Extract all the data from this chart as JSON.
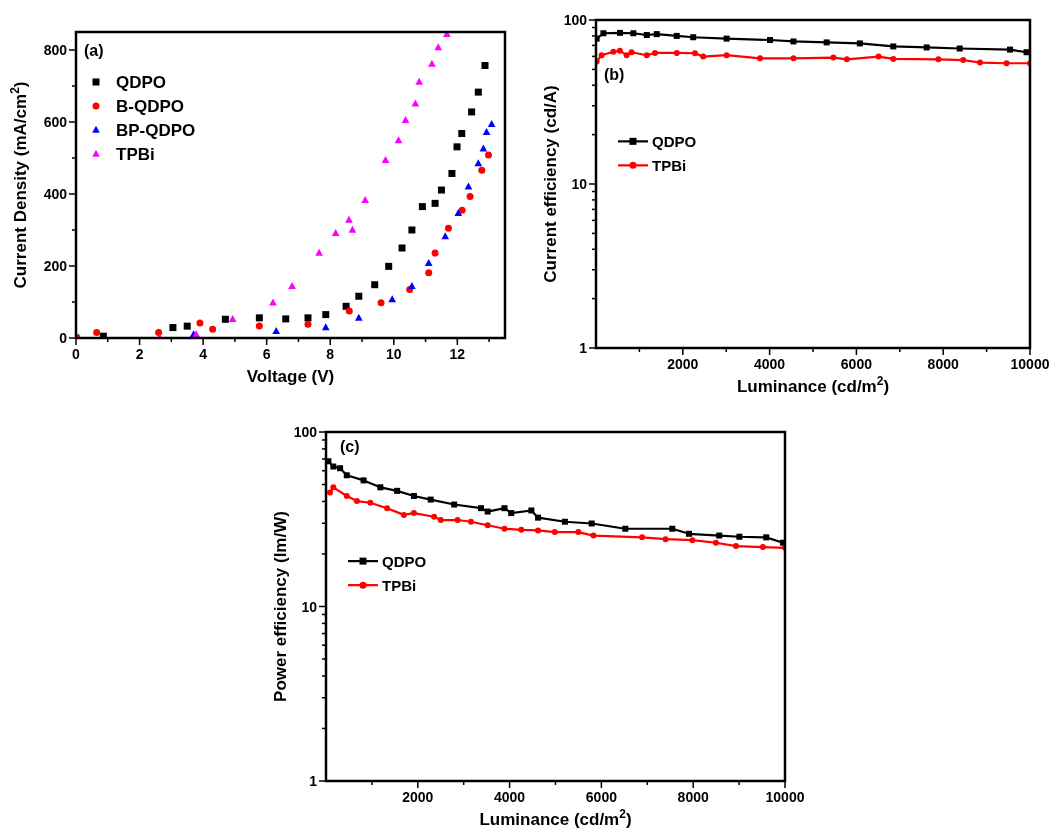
{
  "chart_data": [
    {
      "type": "scatter",
      "annotations": [
        "(a)"
      ],
      "xlabel": "Voltage (V)",
      "ylabel": "Current Density (mA/cm$^{2}$)",
      "xlim": [
        0,
        13.5
      ],
      "ylim": [
        0,
        850
      ],
      "xticks": [
        0,
        {
          "value": 1,
          "label": null
        },
        2,
        {
          "value": 3,
          "label": null
        },
        4,
        {
          "value": 5,
          "label": null
        },
        6,
        {
          "value": 7,
          "label": null
        },
        8,
        {
          "value": 9,
          "label": null
        },
        10,
        {
          "value": 11,
          "label": null
        },
        12,
        {
          "value": 13,
          "label": null
        }
      ],
      "yticks": [
        0,
        {
          "value": 100,
          "label": null
        },
        200,
        {
          "value": 300,
          "label": null
        },
        400,
        {
          "value": 500,
          "label": null
        },
        600,
        {
          "value": 700,
          "label": null
        },
        800
      ],
      "legend": "top left",
      "grid": false,
      "series": [
        {
          "name": "QDPO",
          "color": "#000000",
          "marker": "square",
          "x": [
            0,
            0.86,
            3.05,
            3.5,
            4.7,
            5.77,
            6.6,
            7.3,
            7.86,
            8.5,
            8.9,
            9.4,
            9.84,
            10.26,
            10.57,
            10.9,
            11.3,
            11.5,
            11.83,
            11.99,
            12.14,
            12.45,
            12.66,
            12.87
          ],
          "values": [
            0,
            5,
            29,
            33,
            52,
            56,
            53,
            56,
            65,
            88,
            116,
            148,
            199,
            250,
            300,
            365,
            374,
            411,
            457,
            531,
            568,
            628,
            683,
            757
          ]
        },
        {
          "name": "B-QDPO",
          "color": "#ff0000",
          "marker": "circle",
          "x": [
            0,
            0.65,
            2.6,
            3.9,
            4.3,
            5.77,
            7.3,
            8.6,
            9.6,
            10.5,
            11.1,
            11.3,
            11.72,
            12.15,
            12.4,
            12.77,
            12.98
          ],
          "values": [
            0,
            15,
            15,
            42,
            24,
            33,
            38,
            75,
            98,
            135,
            181,
            236,
            305,
            355,
            393,
            466,
            508
          ]
        },
        {
          "name": "BP-QDPO",
          "color": "#0000ff",
          "marker": "triangle",
          "x": [
            3.7,
            6.3,
            7.86,
            8.9,
            9.95,
            10.57,
            11.1,
            11.62,
            12.03,
            12.35,
            12.66,
            12.82,
            12.92,
            13.08
          ],
          "values": [
            10,
            19,
            29,
            56,
            107,
            144,
            208,
            282,
            347,
            420,
            485,
            526,
            572,
            594
          ]
        },
        {
          "name": "TPBi",
          "color": "#ff00ff",
          "marker": "triangle",
          "x": [
            2.63,
            3.78,
            4.93,
            6.2,
            6.8,
            7.65,
            8.17,
            8.59,
            8.7,
            9.1,
            9.74,
            10.15,
            10.37,
            10.68,
            10.8,
            11.2,
            11.4,
            11.67
          ],
          "values": [
            1,
            10,
            52,
            98,
            144,
            236,
            291,
            328,
            300,
            383,
            494,
            549,
            605,
            651,
            711,
            761,
            807,
            844
          ]
        }
      ]
    },
    {
      "type": "line",
      "annotations": [
        "(b)"
      ],
      "xlabel": "Luminance (cd/m$^{2}$)",
      "ylabel": "Current efficiency (cd/A)",
      "xlim": [
        0,
        10000
      ],
      "ylim": [
        1,
        100
      ],
      "log": "y",
      "xticks": [
        {
          "value": 1000,
          "label": null
        },
        2000,
        {
          "value": 3000,
          "label": null
        },
        4000,
        {
          "value": 5000,
          "label": null
        },
        6000,
        {
          "value": 7000,
          "label": null
        },
        8000,
        {
          "value": 9000,
          "label": null
        },
        10000
      ],
      "yticks": [
        1,
        {
          "value": 2,
          "label": null
        },
        {
          "value": 3,
          "label": null
        },
        {
          "value": 4,
          "label": null
        },
        {
          "value": 5,
          "label": null
        },
        {
          "value": 6,
          "label": null
        },
        {
          "value": 7,
          "label": null
        },
        {
          "value": 8,
          "label": null
        },
        {
          "value": 9,
          "label": null
        },
        10,
        {
          "value": 20,
          "label": null
        },
        {
          "value": 30,
          "label": null
        },
        {
          "value": 40,
          "label": null
        },
        {
          "value": 50,
          "label": null
        },
        {
          "value": 60,
          "label": null
        },
        {
          "value": 70,
          "label": null
        },
        {
          "value": 80,
          "label": null
        },
        {
          "value": 90,
          "label": null
        },
        100
      ],
      "legend": "left",
      "grid": false,
      "series": [
        {
          "name": "QDPO",
          "color": "#000000",
          "marker": "square",
          "x": [
            15,
            170,
            553,
            860,
            1170,
            1400,
            1860,
            2240,
            3010,
            4010,
            4550,
            5315,
            6080,
            6850,
            7620,
            8380,
            9540,
            9920
          ],
          "values": [
            77,
            83,
            83.5,
            83,
            81,
            82,
            80,
            78.5,
            77,
            75.5,
            74,
            73,
            72,
            69,
            68,
            67,
            66,
            63.6
          ]
        },
        {
          "name": "TPBi",
          "color": "#ff0000",
          "marker": "circle",
          "x": [
            15,
            130,
            400,
            550,
            705,
            820,
            1170,
            1360,
            1860,
            2280,
            2470,
            3010,
            3780,
            4550,
            5470,
            5780,
            6510,
            6850,
            7890,
            8460,
            8850,
            9460,
            10000
          ],
          "values": [
            55.8,
            61,
            64,
            65,
            61,
            63.6,
            61,
            63,
            63,
            62.7,
            59.8,
            61,
            58.4,
            58.4,
            59,
            57.6,
            59.8,
            57.9,
            57.6,
            57,
            55,
            54.5,
            54.5
          ]
        }
      ]
    },
    {
      "type": "line",
      "annotations": [
        "(c)"
      ],
      "xlabel": "Luminance (cd/m$^{2}$)",
      "ylabel": "Power efficiency (lm/W)",
      "xlim": [
        0,
        10000
      ],
      "ylim": [
        1,
        100
      ],
      "log": "y",
      "xticks": [
        {
          "value": 1000,
          "label": null
        },
        2000,
        {
          "value": 3000,
          "label": null
        },
        4000,
        {
          "value": 5000,
          "label": null
        },
        6000,
        {
          "value": 7000,
          "label": null
        },
        8000,
        {
          "value": 9000,
          "label": null
        },
        10000
      ],
      "yticks": [
        1,
        {
          "value": 2,
          "label": null
        },
        {
          "value": 3,
          "label": null
        },
        {
          "value": 4,
          "label": null
        },
        {
          "value": 5,
          "label": null
        },
        {
          "value": 6,
          "label": null
        },
        {
          "value": 7,
          "label": null
        },
        {
          "value": 8,
          "label": null
        },
        {
          "value": 9,
          "label": null
        },
        10,
        {
          "value": 20,
          "label": null
        },
        {
          "value": 30,
          "label": null
        },
        {
          "value": 40,
          "label": null
        },
        {
          "value": 50,
          "label": null
        },
        {
          "value": 60,
          "label": null
        },
        {
          "value": 70,
          "label": null
        },
        {
          "value": 80,
          "label": null
        },
        {
          "value": 90,
          "label": null
        },
        100
      ],
      "legend": "left",
      "grid": false,
      "series": [
        {
          "name": "QDPO",
          "color": "#000000",
          "marker": "square",
          "x": [
            51,
            160,
            307,
            453,
            819,
            1184,
            1550,
            1915,
            2281,
            2792,
            3377,
            3523,
            3889,
            4035,
            4474,
            4620,
            5205,
            5789,
            6520,
            7544,
            7909,
            8567,
            9006,
            9591,
            9956
          ],
          "values": [
            68,
            63.4,
            62,
            56.5,
            52.8,
            48.2,
            46,
            43,
            41,
            38.4,
            36.6,
            35,
            36.6,
            34.3,
            35.5,
            32.3,
            30.6,
            29.9,
            27.9,
            27.9,
            26.1,
            25.5,
            25.1,
            24.9,
            23.2
          ]
        },
        {
          "name": "TPBi",
          "color": "#ff0000",
          "marker": "circle",
          "x": [
            88,
            160,
            453,
            673,
            965,
            1330,
            1696,
            1915,
            2354,
            2500,
            2866,
            3158,
            3523,
            3889,
            4254,
            4620,
            4985,
            5497,
            5826,
            6886,
            7398,
            7982,
            8494,
            8933,
            9518,
            10000
          ],
          "values": [
            45,
            48.2,
            43,
            40.2,
            39.3,
            36.6,
            33.5,
            34.3,
            32.7,
            31.3,
            31.3,
            30.6,
            29.2,
            27.9,
            27.5,
            27.3,
            26.7,
            26.7,
            25.5,
            24.9,
            24.3,
            24,
            23.2,
            22.2,
            21.9,
            21.7
          ]
        }
      ]
    }
  ]
}
